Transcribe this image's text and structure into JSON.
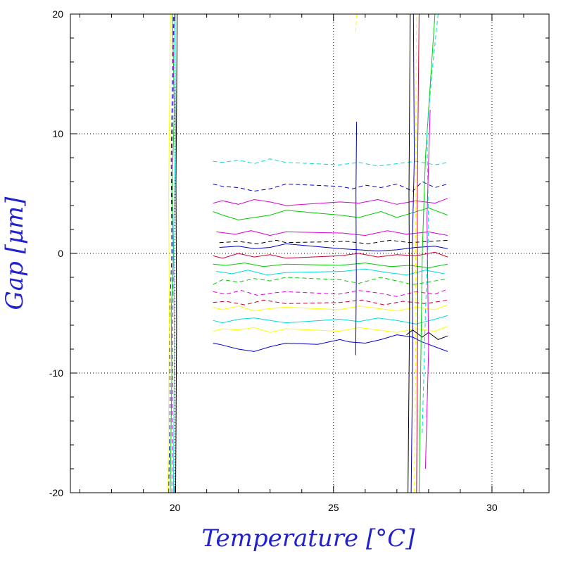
{
  "chart_data": {
    "type": "line",
    "xlabel": "Temperature [°C]",
    "ylabel": "Gap [μm]",
    "xlim": [
      16.7,
      31.8
    ],
    "ylim": [
      -20,
      20
    ],
    "x_ticks": [
      20,
      25,
      30
    ],
    "y_ticks": [
      -20,
      -10,
      0,
      10,
      20
    ],
    "x_tick_labels": [
      "20",
      "25",
      "30"
    ],
    "y_tick_labels": [
      "-20",
      "-10",
      "0",
      "10",
      "20"
    ],
    "grid": true,
    "legend": "none",
    "colors": {
      "axis_title": "#2222cc",
      "traces": [
        "#0000cc",
        "#00cc00",
        "#00dddd",
        "#dd00dd",
        "#cc0033",
        "#ffff00",
        "#000000"
      ]
    },
    "series": [
      {
        "color": "#0000cc",
        "x": [
          21.2,
          21.4,
          22.0,
          22.5,
          23.0,
          23.5,
          24.5,
          25.2,
          25.5,
          26.0,
          26.5,
          27.0,
          27.5,
          27.8,
          28.2,
          28.6
        ],
        "y": [
          -7.5,
          -7.6,
          -8.0,
          -8.2,
          -7.8,
          -7.5,
          -7.6,
          -7.2,
          -7.4,
          -7.5,
          -7.2,
          -6.8,
          -7.0,
          -7.4,
          -7.8,
          -8.2
        ]
      },
      {
        "color": "#0000cc",
        "x": [
          21.2,
          21.5,
          22.0,
          22.5,
          23.0,
          23.5,
          25.2,
          25.6,
          26.0,
          26.5,
          27.0,
          27.5,
          27.8,
          28.2,
          28.6
        ],
        "y": [
          5.8,
          5.6,
          5.5,
          5.2,
          5.4,
          5.8,
          5.6,
          5.4,
          5.7,
          5.5,
          5.8,
          5.2,
          6.0,
          5.5,
          5.8
        ]
      },
      {
        "color": "#0000cc",
        "x": [
          21.4,
          22.0,
          22.5,
          23.0,
          23.5,
          25.2,
          25.8,
          26.4,
          27.0,
          27.6,
          28.2,
          28.6
        ],
        "y": [
          0.5,
          0.6,
          0.4,
          0.5,
          0.8,
          0.4,
          0.3,
          0.2,
          0.3,
          0.5,
          0.6,
          0.4
        ]
      },
      {
        "color": "#00cc00",
        "x": [
          21.2,
          21.5,
          22.0,
          22.5,
          23.0,
          23.5,
          25.2,
          25.8,
          26.5,
          27.0,
          27.5,
          28.0,
          28.6
        ],
        "y": [
          3.5,
          3.2,
          2.8,
          3.0,
          3.2,
          3.6,
          3.2,
          3.0,
          3.5,
          3.0,
          3.4,
          3.8,
          3.2
        ]
      },
      {
        "color": "#00cc00",
        "x": [
          21.2,
          21.5,
          22.0,
          22.5,
          23.0,
          23.5,
          25.2,
          25.8,
          26.5,
          27.0,
          27.5,
          28.0,
          28.6
        ],
        "y": [
          -2.6,
          -2.2,
          -2.4,
          -2.1,
          -2.3,
          -2.0,
          -2.2,
          -2.5,
          -2.0,
          -2.3,
          -2.6,
          -2.4,
          -2.1
        ]
      },
      {
        "color": "#00cc00",
        "x": [
          21.2,
          21.6,
          22.2,
          22.8,
          23.5,
          25.2,
          26.0,
          26.8,
          27.4,
          28.0,
          28.6
        ],
        "y": [
          -0.9,
          -1.0,
          -0.8,
          -1.1,
          -0.9,
          -1.0,
          -0.8,
          -1.1,
          -1.0,
          -1.2,
          -0.9
        ]
      },
      {
        "color": "#00dddd",
        "x": [
          21.2,
          21.5,
          22.0,
          22.5,
          23.0,
          23.5,
          25.2,
          25.8,
          26.4,
          27.0,
          27.6,
          28.2,
          28.6
        ],
        "y": [
          -5.6,
          -5.8,
          -5.5,
          -5.4,
          -5.6,
          -5.8,
          -5.5,
          -5.7,
          -5.4,
          -5.6,
          -5.9,
          -5.5,
          -5.2
        ]
      },
      {
        "color": "#00dddd",
        "x": [
          21.2,
          21.5,
          22.0,
          22.5,
          23.0,
          23.5,
          25.2,
          25.8,
          26.4,
          27.0,
          27.6,
          28.2,
          28.6
        ],
        "y": [
          7.7,
          7.6,
          7.8,
          7.5,
          7.9,
          7.6,
          7.4,
          7.6,
          7.3,
          7.5,
          7.7,
          7.4,
          7.6
        ]
      },
      {
        "color": "#00dddd",
        "x": [
          21.3,
          21.8,
          22.3,
          22.9,
          23.5,
          25.3,
          26.0,
          26.7,
          27.3,
          27.9,
          28.5
        ],
        "y": [
          -1.5,
          -1.7,
          -1.4,
          -1.8,
          -1.6,
          -1.5,
          -1.3,
          -1.6,
          -1.8,
          -1.4,
          -1.7
        ]
      },
      {
        "color": "#dd00dd",
        "x": [
          21.2,
          21.5,
          22.0,
          22.5,
          23.0,
          23.5,
          25.2,
          25.8,
          26.4,
          27.0,
          27.6,
          28.2,
          28.6
        ],
        "y": [
          4.2,
          4.4,
          4.1,
          4.5,
          4.3,
          4.0,
          4.3,
          4.2,
          4.5,
          4.1,
          4.4,
          4.2,
          4.6
        ]
      },
      {
        "color": "#dd00dd",
        "x": [
          21.2,
          21.6,
          22.1,
          22.6,
          23.1,
          23.5,
          25.2,
          25.8,
          26.4,
          27.0,
          27.6,
          28.2,
          28.6
        ],
        "y": [
          -3.2,
          -3.4,
          -3.1,
          -3.5,
          -3.3,
          -3.2,
          -3.4,
          -3.1,
          -3.3,
          -3.6,
          -3.2,
          -3.4,
          -3.0
        ]
      },
      {
        "color": "#dd00dd",
        "x": [
          21.3,
          21.9,
          22.4,
          23.0,
          23.5,
          25.3,
          26.0,
          26.7,
          27.3,
          28.0,
          28.6
        ],
        "y": [
          1.8,
          1.6,
          1.9,
          1.5,
          1.8,
          1.7,
          1.5,
          1.9,
          1.6,
          1.8,
          1.5
        ]
      },
      {
        "color": "#cc0033",
        "x": [
          21.2,
          21.5,
          22.0,
          22.5,
          23.0,
          23.5,
          25.2,
          25.8,
          26.4,
          27.0,
          27.6,
          28.2,
          28.6
        ],
        "y": [
          -0.2,
          -0.4,
          0.0,
          -0.3,
          -0.1,
          -0.4,
          -0.2,
          0.0,
          -0.3,
          -0.1,
          -0.2,
          0.1,
          -0.3
        ]
      },
      {
        "color": "#cc0033",
        "x": [
          21.2,
          21.6,
          22.2,
          22.8,
          23.5,
          25.2,
          25.9,
          26.6,
          27.2,
          27.9,
          28.6
        ],
        "y": [
          -4.1,
          -4.0,
          -4.3,
          -3.9,
          -4.2,
          -4.1,
          -3.9,
          -4.3,
          -4.0,
          -4.2,
          -3.9
        ]
      },
      {
        "color": "#ffff00",
        "x": [
          21.2,
          21.5,
          22.0,
          22.5,
          23.0,
          23.5,
          25.2,
          25.8,
          26.4,
          27.0,
          27.6,
          28.2,
          28.6
        ],
        "y": [
          -4.5,
          -4.7,
          -4.4,
          -4.8,
          -4.6,
          -4.5,
          -4.7,
          -4.4,
          -4.6,
          -4.8,
          -4.5,
          -4.7,
          -4.3
        ]
      },
      {
        "color": "#ffff00",
        "x": [
          21.2,
          21.5,
          22.0,
          22.5,
          23.0,
          23.5,
          25.2,
          25.8,
          26.4,
          27.0,
          27.6,
          28.2,
          28.6
        ],
        "y": [
          -6.5,
          -6.3,
          -6.4,
          -6.2,
          -6.6,
          -6.3,
          -6.5,
          -6.2,
          -6.4,
          -6.6,
          -6.3,
          -6.5,
          -6.1
        ]
      },
      {
        "color": "#000000",
        "x": [
          21.4,
          22.0,
          22.6,
          23.2,
          23.5,
          25.4,
          26.1,
          26.8,
          27.4,
          28.0,
          28.6
        ],
        "y": [
          0.9,
          1.0,
          0.8,
          1.1,
          0.9,
          1.0,
          0.8,
          1.1,
          0.9,
          1.0,
          1.1
        ]
      },
      {
        "color": "#000000",
        "x": [
          27.3,
          27.5,
          27.8,
          28.0,
          28.3,
          28.6
        ],
        "y": [
          -6.8,
          -6.4,
          -7.0,
          -6.6,
          -7.2,
          -6.9
        ]
      },
      {
        "color": "#00cc00",
        "x": [
          19.85,
          19.9,
          19.88,
          19.95,
          19.9,
          19.98,
          19.92
        ],
        "y": [
          -20,
          -10,
          -5,
          0,
          5,
          12,
          20
        ]
      },
      {
        "color": "#0000cc",
        "x": [
          19.8,
          19.85,
          19.82,
          19.9,
          19.88,
          19.95
        ],
        "y": [
          -20,
          -12,
          -6,
          0,
          8,
          20
        ]
      },
      {
        "color": "#00dddd",
        "x": [
          19.95,
          19.98,
          19.96,
          20.02,
          19.99
        ],
        "y": [
          -20,
          -8,
          2,
          10,
          20
        ]
      },
      {
        "color": "#ffff00",
        "x": [
          19.78,
          19.82,
          19.8,
          19.86
        ],
        "y": [
          -20,
          -5,
          5,
          20
        ]
      },
      {
        "color": "#dd00dd",
        "x": [
          19.9,
          19.94,
          19.92,
          19.97
        ],
        "y": [
          -20,
          -2,
          8,
          20
        ]
      },
      {
        "color": "#000000",
        "x": [
          20.02,
          20.05,
          20.03,
          20.07
        ],
        "y": [
          -20,
          -6,
          6,
          20
        ]
      },
      {
        "color": "#0000cc",
        "x": [
          27.45,
          27.5,
          27.48,
          27.55,
          27.52
        ],
        "y": [
          -20,
          -8,
          0,
          8,
          20
        ]
      },
      {
        "color": "#ffff00",
        "x": [
          27.55,
          27.6,
          27.58,
          27.62
        ],
        "y": [
          -20,
          -6,
          6,
          20
        ]
      },
      {
        "color": "#cc0033",
        "x": [
          27.62,
          27.66,
          27.64,
          27.7
        ],
        "y": [
          -20,
          -4,
          4,
          20
        ]
      },
      {
        "color": "#00cc00",
        "x": [
          27.7,
          27.75,
          27.8,
          27.9,
          28.1,
          28.2
        ],
        "y": [
          -20,
          -10,
          0,
          8,
          16,
          20
        ]
      },
      {
        "color": "#00dddd",
        "x": [
          27.8,
          27.9,
          28.0,
          27.95,
          28.1,
          28.3
        ],
        "y": [
          -15,
          -5,
          2,
          10,
          15,
          20
        ]
      },
      {
        "color": "#000000",
        "x": [
          27.35,
          27.4,
          27.38,
          27.42
        ],
        "y": [
          -20,
          -5,
          5,
          20
        ]
      },
      {
        "color": "#dd00dd",
        "x": [
          27.9,
          28.0,
          27.95,
          28.05
        ],
        "y": [
          -18,
          -8,
          3,
          12
        ]
      },
      {
        "color": "#ffff00",
        "x": [
          25.7,
          25.72,
          25.74
        ],
        "y": [
          18.5,
          19.5,
          20
        ]
      },
      {
        "color": "#0000cc",
        "x": [
          25.7,
          25.72,
          25.71,
          25.73
        ],
        "y": [
          -8.5,
          -2,
          5,
          11
        ]
      }
    ]
  }
}
